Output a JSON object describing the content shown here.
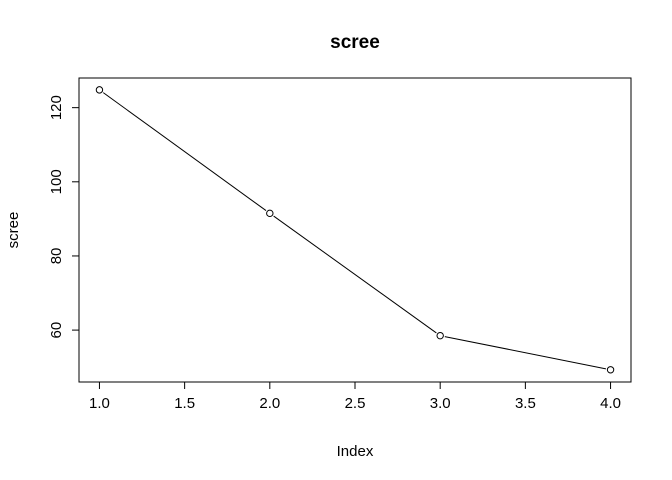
{
  "chart_data": {
    "type": "line",
    "title": "scree",
    "xlabel": "Index",
    "ylabel": "scree",
    "x": [
      1,
      2,
      3,
      4
    ],
    "series": [
      {
        "values": [
          124.8,
          91.5,
          58.5,
          49.3
        ]
      }
    ],
    "xlim": [
      0.88,
      4.12
    ],
    "ylim": [
      46.0,
      128.0
    ],
    "xticks": [
      "1.0",
      "1.5",
      "2.0",
      "2.5",
      "3.0",
      "3.5",
      "4.0"
    ],
    "yticks": [
      "60",
      "80",
      "100",
      "120"
    ],
    "grid": false,
    "legend": "none",
    "marker": "open-circle",
    "line_color": "#000000"
  }
}
